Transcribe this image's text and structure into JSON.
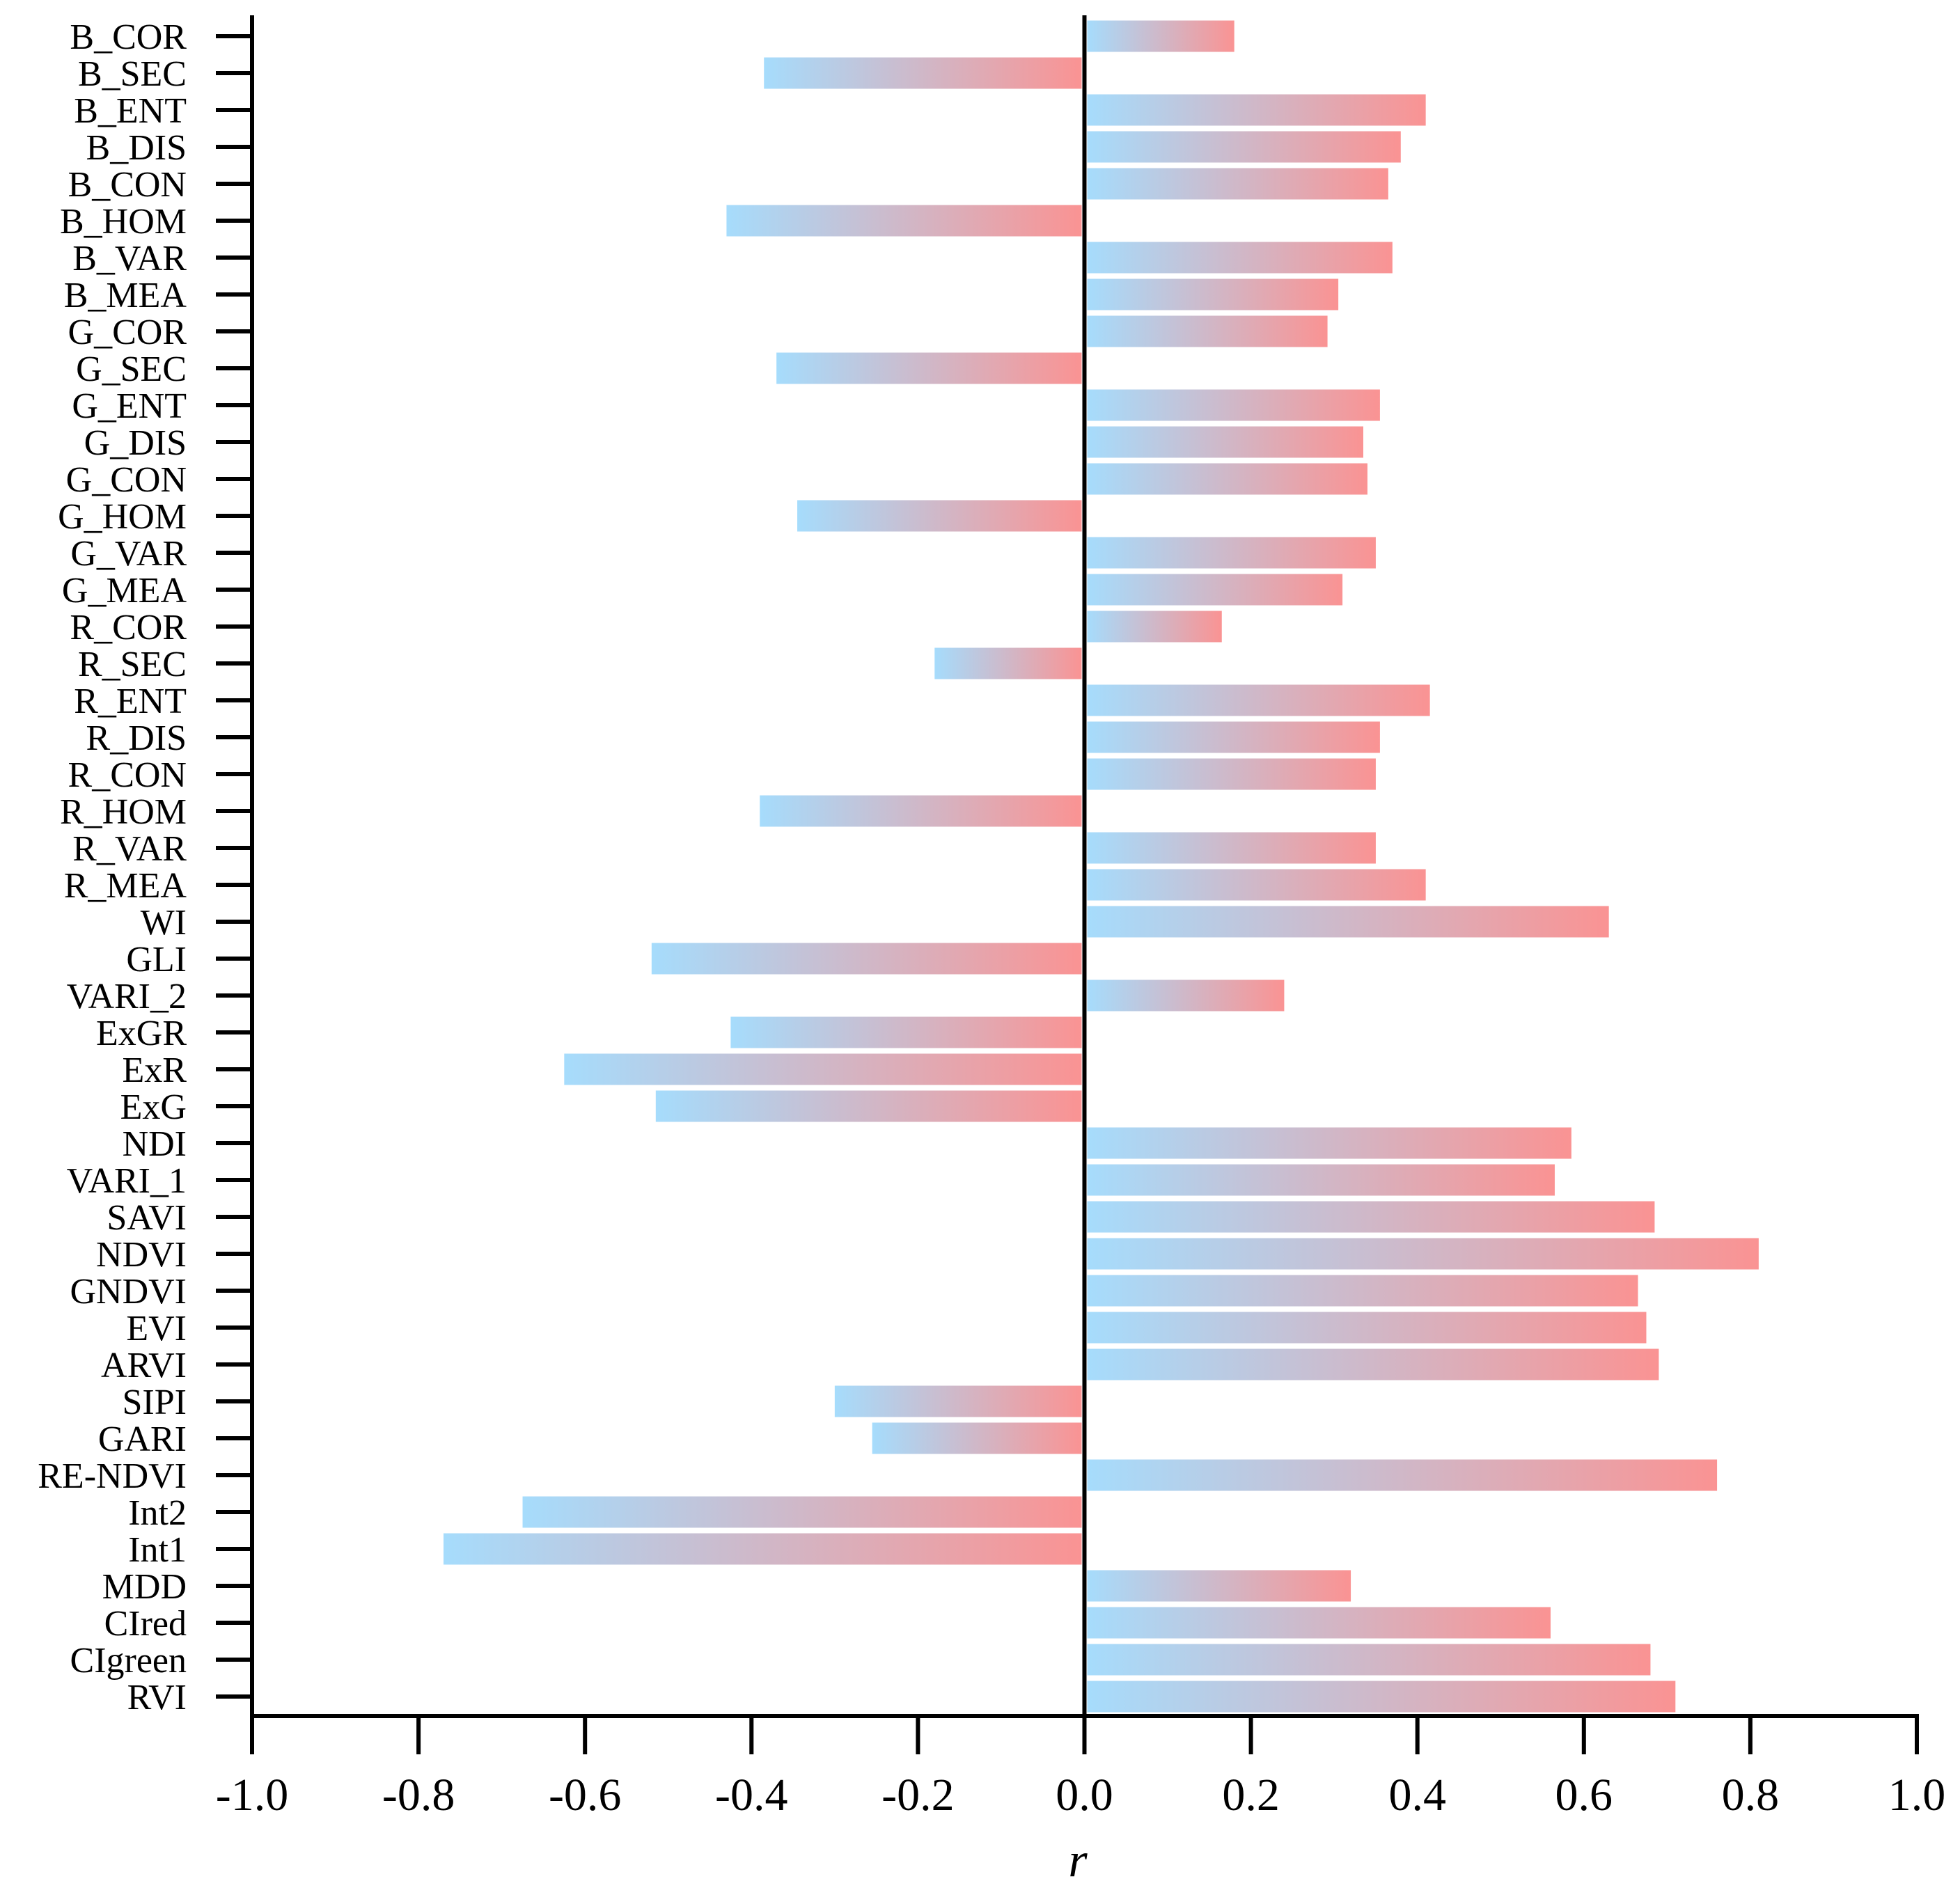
{
  "chart_data": {
    "type": "bar",
    "orientation": "horizontal",
    "title": "",
    "xlabel": "r",
    "ylabel": "",
    "xlim": [
      -1.0,
      1.0
    ],
    "xticks": [
      "-1.0",
      "-0.8",
      "-0.6",
      "-0.4",
      "-0.2",
      "0.0",
      "0.2",
      "0.4",
      "0.6",
      "0.8",
      "1.0"
    ],
    "grid": false,
    "legend": "none",
    "gradient": {
      "start": "#a6dcfc",
      "end": "#fa9393"
    },
    "categories": [
      "B_COR",
      "B_SEC",
      "B_ENT",
      "B_DIS",
      "B_CON",
      "B_HOM",
      "B_VAR",
      "B_MEA",
      "G_COR",
      "G_SEC",
      "G_ENT",
      "G_DIS",
      "G_CON",
      "G_HOM",
      "G_VAR",
      "G_MEA",
      "R_COR",
      "R_SEC",
      "R_ENT",
      "R_DIS",
      "R_CON",
      "R_HOM",
      "R_VAR",
      "R_MEA",
      "WI",
      "GLI",
      "VARI_2",
      "ExGR",
      "ExR",
      "ExG",
      "NDI",
      "VARI_1",
      "SAVI",
      "NDVI",
      "GNDVI",
      "EVI",
      "ARVI",
      "SIPI",
      "GARI",
      "RE-NDVI",
      "Int2",
      "Int1",
      "MDD",
      "CIred",
      "CIgreen",
      "RVI"
    ],
    "values": [
      0.18,
      -0.385,
      0.41,
      0.38,
      0.365,
      -0.43,
      0.37,
      0.305,
      0.292,
      -0.37,
      0.355,
      0.335,
      0.34,
      -0.345,
      0.35,
      0.31,
      0.165,
      -0.18,
      0.415,
      0.355,
      0.35,
      -0.39,
      0.35,
      0.41,
      0.63,
      -0.52,
      0.24,
      -0.425,
      -0.625,
      -0.515,
      0.585,
      0.565,
      0.685,
      0.81,
      0.665,
      0.675,
      0.69,
      -0.3,
      -0.255,
      0.76,
      -0.675,
      -0.77,
      0.32,
      0.56,
      0.68,
      0.71
    ]
  }
}
